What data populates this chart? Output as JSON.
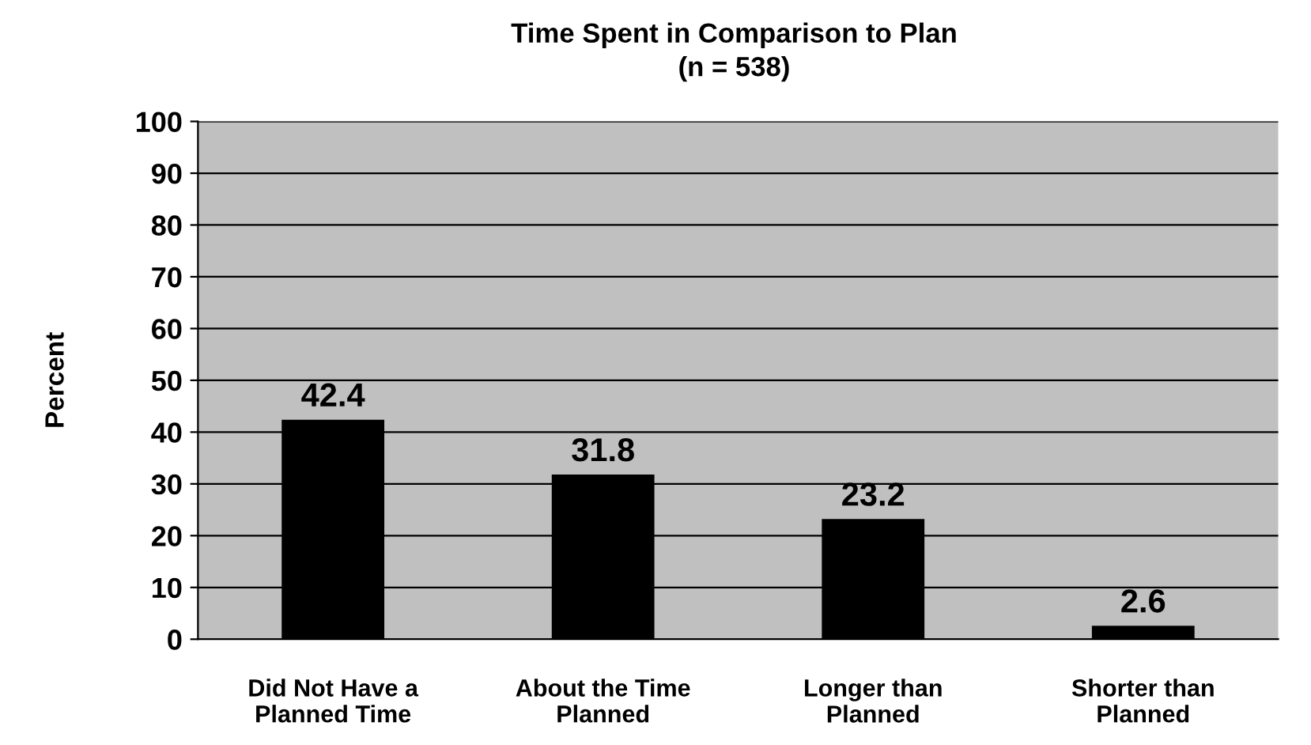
{
  "chart_data": {
    "type": "bar",
    "title": "Time Spent in Comparison to Plan",
    "subtitle": "(n = 538)",
    "ylabel": "Percent",
    "categories": [
      "Did Not Have a\nPlanned Time",
      "About the Time\nPlanned",
      "Longer than\nPlanned",
      "Shorter than\nPlanned"
    ],
    "values": [
      42.4,
      31.8,
      23.2,
      2.6
    ],
    "color": "#000000",
    "ylim": [
      0,
      100
    ],
    "yticks": [
      0,
      10,
      20,
      30,
      40,
      50,
      60,
      70,
      80,
      90,
      100
    ],
    "grid": "y",
    "data_labels": true
  }
}
